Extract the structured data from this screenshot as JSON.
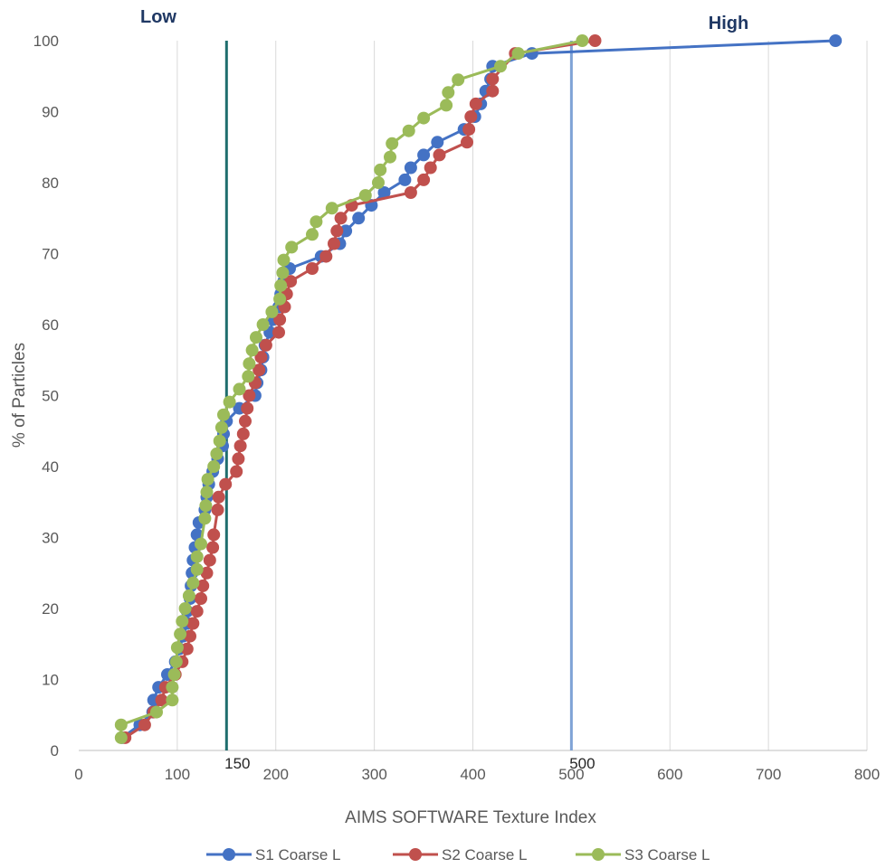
{
  "chart_data": {
    "type": "scatter",
    "xlabel": "AIMS SOFTWARE Texture Index",
    "ylabel": "% of Particles",
    "xlim": [
      0,
      800
    ],
    "ylim": [
      0,
      100
    ],
    "x_ticks": [
      "0",
      "100",
      "200",
      "300",
      "400",
      "500",
      "600",
      "700",
      "800"
    ],
    "y_ticks": [
      "0",
      "10",
      "20",
      "30",
      "40",
      "50",
      "60",
      "70",
      "80",
      "90",
      "100"
    ],
    "grid": "vertical",
    "legend_position": "bottom",
    "zone_labels": {
      "low": "Low",
      "high": "High"
    },
    "reference_lines": [
      {
        "x": 150,
        "label": "150",
        "color": "#1f6e6e"
      },
      {
        "x": 500,
        "label": "500",
        "color": "#7fa3d6"
      }
    ],
    "series": [
      {
        "name": "S1 Coarse L",
        "color": "#4472c4",
        "points": [
          [
            44,
            1.8
          ],
          [
            62,
            3.6
          ],
          [
            75,
            5.4
          ],
          [
            76,
            7.1
          ],
          [
            81,
            8.9
          ],
          [
            90,
            10.7
          ],
          [
            98,
            12.5
          ],
          [
            102,
            14.3
          ],
          [
            106,
            16.1
          ],
          [
            110,
            17.9
          ],
          [
            110,
            19.6
          ],
          [
            113,
            21.4
          ],
          [
            114,
            23.2
          ],
          [
            115,
            25
          ],
          [
            116,
            26.8
          ],
          [
            118,
            28.6
          ],
          [
            120,
            30.4
          ],
          [
            122,
            32.1
          ],
          [
            128,
            33.9
          ],
          [
            130,
            35.7
          ],
          [
            132,
            37.5
          ],
          [
            136,
            39.3
          ],
          [
            141,
            41.1
          ],
          [
            146,
            42.9
          ],
          [
            147,
            44.6
          ],
          [
            150,
            46.4
          ],
          [
            163,
            48.2
          ],
          [
            179,
            50
          ],
          [
            181,
            51.8
          ],
          [
            185,
            53.6
          ],
          [
            187,
            55.4
          ],
          [
            189,
            57.1
          ],
          [
            194,
            58.9
          ],
          [
            197,
            60.7
          ],
          [
            203,
            62.5
          ],
          [
            205,
            64.3
          ],
          [
            208,
            66.1
          ],
          [
            214,
            67.9
          ],
          [
            246,
            69.6
          ],
          [
            265,
            71.4
          ],
          [
            271,
            73.2
          ],
          [
            284,
            75
          ],
          [
            297,
            76.8
          ],
          [
            310,
            78.6
          ],
          [
            331,
            80.4
          ],
          [
            337,
            82.1
          ],
          [
            350,
            83.9
          ],
          [
            364,
            85.7
          ],
          [
            391,
            87.5
          ],
          [
            402,
            89.3
          ],
          [
            408,
            91.1
          ],
          [
            413,
            92.9
          ],
          [
            418,
            94.6
          ],
          [
            420,
            96.4
          ],
          [
            460,
            98.2
          ],
          [
            768,
            100
          ]
        ]
      },
      {
        "name": "S2 Coarse L",
        "color": "#c0504d",
        "points": [
          [
            47,
            1.8
          ],
          [
            67,
            3.6
          ],
          [
            76,
            5.4
          ],
          [
            84,
            7.1
          ],
          [
            88,
            8.9
          ],
          [
            98,
            10.7
          ],
          [
            105,
            12.5
          ],
          [
            110,
            14.3
          ],
          [
            113,
            16.1
          ],
          [
            116,
            17.9
          ],
          [
            120,
            19.6
          ],
          [
            124,
            21.4
          ],
          [
            126,
            23.2
          ],
          [
            130,
            25
          ],
          [
            133,
            26.8
          ],
          [
            136,
            28.6
          ],
          [
            137,
            30.4
          ],
          [
            141,
            33.9
          ],
          [
            142,
            35.7
          ],
          [
            149,
            37.5
          ],
          [
            160,
            39.3
          ],
          [
            162,
            41.1
          ],
          [
            164,
            42.9
          ],
          [
            167,
            44.6
          ],
          [
            169,
            46.4
          ],
          [
            171,
            48.2
          ],
          [
            173,
            50
          ],
          [
            179,
            51.8
          ],
          [
            183,
            53.6
          ],
          [
            185,
            55.4
          ],
          [
            190,
            57.1
          ],
          [
            203,
            58.9
          ],
          [
            204,
            60.7
          ],
          [
            209,
            62.5
          ],
          [
            211,
            64.3
          ],
          [
            215,
            66.1
          ],
          [
            237,
            67.9
          ],
          [
            251,
            69.6
          ],
          [
            259,
            71.4
          ],
          [
            262,
            73.2
          ],
          [
            266,
            75
          ],
          [
            277,
            76.8
          ],
          [
            337,
            78.6
          ],
          [
            350,
            80.4
          ],
          [
            357,
            82.1
          ],
          [
            366,
            83.9
          ],
          [
            394,
            85.7
          ],
          [
            396,
            87.5
          ],
          [
            398,
            89.3
          ],
          [
            403,
            91.1
          ],
          [
            420,
            92.9
          ],
          [
            420,
            94.6
          ],
          [
            443,
            98.2
          ],
          [
            524,
            100
          ]
        ]
      },
      {
        "name": "S3 Coarse L",
        "color": "#9bbb59",
        "points": [
          [
            43,
            1.8
          ],
          [
            43,
            3.6
          ],
          [
            79,
            5.4
          ],
          [
            95,
            7.1
          ],
          [
            95,
            8.9
          ],
          [
            97,
            10.7
          ],
          [
            99,
            12.5
          ],
          [
            100,
            14.5
          ],
          [
            103,
            16.4
          ],
          [
            105,
            18.2
          ],
          [
            108,
            20
          ],
          [
            112,
            21.8
          ],
          [
            116,
            23.6
          ],
          [
            120,
            25.5
          ],
          [
            120,
            27.3
          ],
          [
            124,
            29.1
          ],
          [
            128,
            32.7
          ],
          [
            129,
            34.5
          ],
          [
            130,
            36.4
          ],
          [
            131,
            38.2
          ],
          [
            137,
            40
          ],
          [
            140,
            41.8
          ],
          [
            143,
            43.6
          ],
          [
            145,
            45.5
          ],
          [
            147,
            47.3
          ],
          [
            153,
            49.1
          ],
          [
            163,
            50.9
          ],
          [
            172,
            52.7
          ],
          [
            173,
            54.5
          ],
          [
            176,
            56.4
          ],
          [
            180,
            58.2
          ],
          [
            187,
            60
          ],
          [
            196,
            61.8
          ],
          [
            204,
            63.6
          ],
          [
            205,
            65.5
          ],
          [
            207,
            67.3
          ],
          [
            208,
            69.1
          ],
          [
            216,
            70.9
          ],
          [
            237,
            72.7
          ],
          [
            241,
            74.5
          ],
          [
            257,
            76.4
          ],
          [
            291,
            78.2
          ],
          [
            304,
            80
          ],
          [
            306,
            81.8
          ],
          [
            316,
            83.6
          ],
          [
            318,
            85.5
          ],
          [
            335,
            87.3
          ],
          [
            350,
            89.1
          ],
          [
            373,
            90.9
          ],
          [
            375,
            92.7
          ],
          [
            385,
            94.5
          ],
          [
            428,
            96.4
          ],
          [
            446,
            98.2
          ],
          [
            511,
            100
          ]
        ]
      }
    ]
  }
}
